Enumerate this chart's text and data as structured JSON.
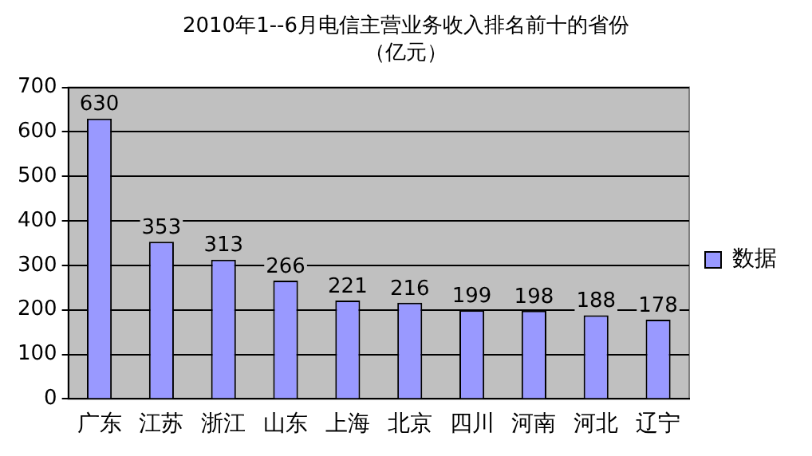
{
  "chart_data": {
    "type": "bar",
    "title": "2010年1--6月电信主营业务收入排名前十的省份（亿元）",
    "categories": [
      "广东",
      "江苏",
      "浙江",
      "山东",
      "上海",
      "北京",
      "四川",
      "河南",
      "河北",
      "辽宁"
    ],
    "series": [
      {
        "name": "数据",
        "color": "#9999ff",
        "values": [
          630,
          353,
          313,
          266,
          221,
          216,
          199,
          198,
          188,
          178
        ]
      }
    ],
    "ylim": [
      0,
      700
    ],
    "yticks": [
      0,
      100,
      200,
      300,
      400,
      500,
      600,
      700
    ],
    "grid": "y",
    "legend": "right",
    "data_labels": true
  }
}
